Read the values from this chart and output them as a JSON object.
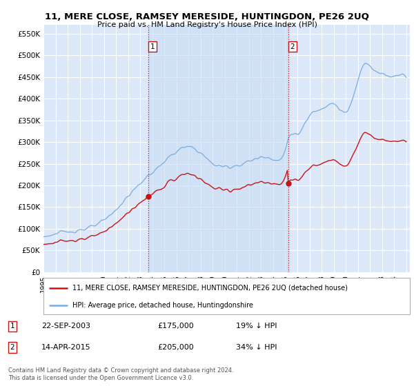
{
  "title": "11, MERE CLOSE, RAMSEY MERESIDE, HUNTINGDON, PE26 2UQ",
  "subtitle": "Price paid vs. HM Land Registry's House Price Index (HPI)",
  "ylabel_ticks": [
    "£0",
    "£50K",
    "£100K",
    "£150K",
    "£200K",
    "£250K",
    "£300K",
    "£350K",
    "£400K",
    "£450K",
    "£500K",
    "£550K"
  ],
  "ytick_values": [
    0,
    50000,
    100000,
    150000,
    200000,
    250000,
    300000,
    350000,
    400000,
    450000,
    500000,
    550000
  ],
  "ylim": [
    0,
    570000
  ],
  "background_color": "#dce8f8",
  "plot_bg_color": "#dce8f8",
  "grid_color": "#ffffff",
  "hpi_color": "#7aace0",
  "price_color": "#cc1111",
  "shade_color": "#c8dcf4",
  "legend_label_price": "11, MERE CLOSE, RAMSEY MERESIDE, HUNTINGDON, PE26 2UQ (detached house)",
  "legend_label_hpi": "HPI: Average price, detached house, Huntingdonshire",
  "footer": "Contains HM Land Registry data © Crown copyright and database right 2024.\nThis data is licensed under the Open Government Licence v3.0.",
  "marker1_date_str": "22-SEP-2003",
  "marker1_price_str": "£175,000",
  "marker1_hpi_pct": "19% ↓ HPI",
  "marker2_date_str": "14-APR-2015",
  "marker2_price_str": "£205,000",
  "marker2_hpi_pct": "34% ↓ HPI"
}
